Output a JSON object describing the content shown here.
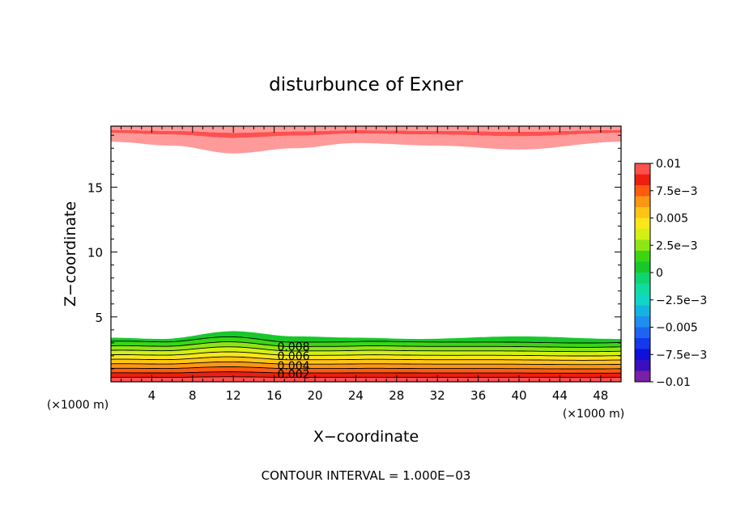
{
  "chart_data": {
    "type": "contour",
    "title": "disturbunce of Exner",
    "xlabel": "X−coordinate",
    "ylabel": "Z−coordinate",
    "x_unit_left": "(×1000 m)",
    "x_unit_right": "(×1000 m)",
    "xlim": [
      0,
      50
    ],
    "ylim": [
      0,
      19.7
    ],
    "x_ticks": [
      4,
      8,
      12,
      16,
      20,
      24,
      28,
      32,
      36,
      40,
      44,
      48
    ],
    "x_tick_labels": [
      "4",
      "8",
      "12",
      "16",
      "20",
      "24",
      "28",
      "32",
      "36",
      "40",
      "44",
      "48"
    ],
    "y_ticks": [
      5,
      10,
      15
    ],
    "y_tick_labels": [
      "5",
      "10",
      "15"
    ],
    "contour_interval_text": "CONTOUR INTERVAL = 1.000E−03",
    "contour_interval": 0.001,
    "contour_labels": [
      {
        "text": "0.008",
        "x": 17.9,
        "z": 2.7
      },
      {
        "text": "0.006",
        "x": 17.9,
        "z": 2.0
      },
      {
        "text": "0.004",
        "x": 17.9,
        "z": 1.25
      },
      {
        "text": "0.002",
        "x": 17.9,
        "z": 0.6
      }
    ],
    "colorbar": {
      "levels": [
        -0.01,
        -0.009,
        -0.008,
        -0.007,
        -0.006,
        -0.005,
        -0.004,
        -0.003,
        -0.002,
        -0.001,
        0,
        0.001,
        0.002,
        0.003,
        0.004,
        0.005,
        0.006,
        0.007,
        0.008,
        0.009,
        0.01
      ],
      "colors": [
        "#7a1fa8",
        "#3a0fbe",
        "#1010d8",
        "#1438ec",
        "#1e64f0",
        "#1e8ef0",
        "#14b4e0",
        "#10d6c8",
        "#10dca0",
        "#10d470",
        "#18c82a",
        "#3ad614",
        "#8ce614",
        "#d2f014",
        "#fae61a",
        "#ffc414",
        "#ff9612",
        "#ff5a10",
        "#ee1e10",
        "#ff5050",
        "#ff9a9a"
      ],
      "tick_values": [
        0.01,
        0.0075,
        0.005,
        0.0025,
        0,
        -0.0025,
        -0.005,
        -0.0075,
        -0.01
      ],
      "tick_labels": [
        "0.01",
        "7.5e−3",
        "0.005",
        "2.5e−3",
        "0",
        "−2.5e−3",
        "−0.005",
        "−7.5e−3",
        "−0.01"
      ]
    },
    "field_description_bottom": {
      "z_at_zero_level_over_x": [
        [
          0,
          3.4
        ],
        [
          5,
          3.3
        ],
        [
          12,
          3.9
        ],
        [
          18,
          3.5
        ],
        [
          24,
          3.4
        ],
        [
          30,
          3.3
        ],
        [
          40,
          3.5
        ],
        [
          50,
          3.3
        ]
      ]
    },
    "field_description_top": {
      "z_at_zero_level_over_x": [
        [
          0,
          18.5
        ],
        [
          6,
          18.2
        ],
        [
          12,
          17.6
        ],
        [
          18,
          18.0
        ],
        [
          24,
          18.4
        ],
        [
          32,
          18.2
        ],
        [
          40,
          17.9
        ],
        [
          50,
          18.5
        ]
      ]
    }
  }
}
